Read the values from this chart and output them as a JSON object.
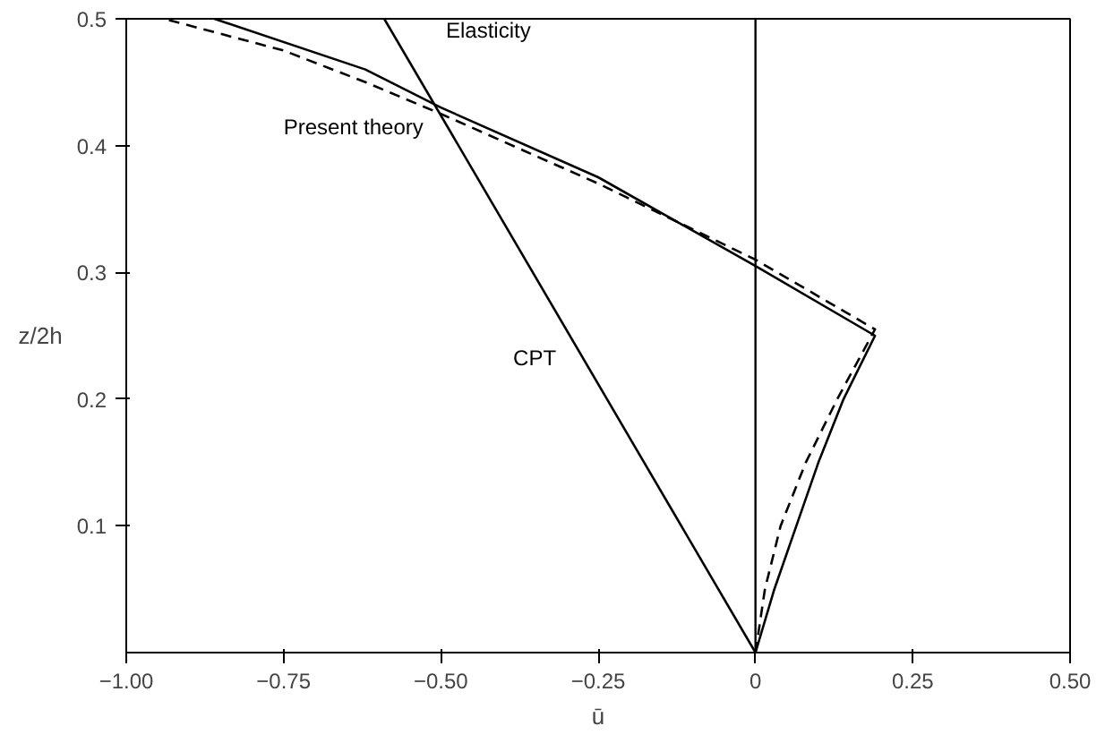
{
  "chart_data": {
    "type": "line",
    "xlabel": "ū",
    "ylabel": "z/2h",
    "xlim": [
      -1,
      0.5
    ],
    "ylim": [
      0,
      0.5
    ],
    "xticks": [
      {
        "value": -1,
        "label": "−1.00"
      },
      {
        "value": -0.75,
        "label": "−0.75"
      },
      {
        "value": -0.5,
        "label": "−0.50"
      },
      {
        "value": -0.25,
        "label": "−0.25"
      },
      0,
      {
        "value": 0.25,
        "label": "0.25"
      },
      {
        "value": 0.5,
        "label": "0.50"
      }
    ],
    "yticks": [
      0.1,
      0.2,
      0.3,
      0.4,
      0.5
    ],
    "grid": false,
    "legend": false,
    "ref_lines": [
      {
        "axis": "x",
        "value": 0,
        "color": "#000000",
        "line_style": "solid"
      }
    ],
    "series": [
      {
        "name": "Elasticity",
        "color": "#000000",
        "line_style": "solid",
        "x": [
          0,
          0.03,
          0.065,
          0.1,
          0.14,
          0.19,
          0,
          -0.25,
          -0.5,
          -0.62,
          -0.86
        ],
        "values": [
          0,
          0.05,
          0.1,
          0.15,
          0.2,
          0.25,
          0.305,
          0.375,
          0.43,
          0.46,
          0.5
        ]
      },
      {
        "name": "Present theory",
        "color": "#000000",
        "line_style": "dashed",
        "x": [
          0,
          0.015,
          0.04,
          0.08,
          0.13,
          0.19,
          0,
          -0.25,
          -0.5,
          -0.62,
          -0.75,
          -0.94
        ],
        "values": [
          0,
          0.05,
          0.1,
          0.15,
          0.2,
          0.255,
          0.31,
          0.37,
          0.425,
          0.45,
          0.475,
          0.5
        ]
      },
      {
        "name": "CPT",
        "color": "#000000",
        "line_style": "solid",
        "x": [
          0,
          -0.59
        ],
        "values": [
          0,
          0.5
        ]
      }
    ]
  }
}
